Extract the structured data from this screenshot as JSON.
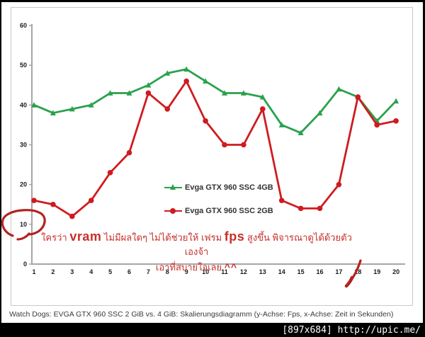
{
  "chart_data": {
    "type": "line",
    "title": "",
    "xlabel": "Zeit in Sekunden",
    "ylabel": "Fps",
    "categories": [
      1,
      2,
      3,
      4,
      5,
      6,
      7,
      8,
      9,
      10,
      11,
      12,
      13,
      14,
      15,
      16,
      17,
      18,
      19,
      20
    ],
    "ylim": [
      0,
      60
    ],
    "y_ticks": [
      0,
      10,
      20,
      30,
      40,
      50,
      60
    ],
    "grid": false,
    "legend_position": "center",
    "series": [
      {
        "name": "Evga GTX 960 SSC 4GB",
        "color": "#2aa14d",
        "marker": "triangle",
        "values": [
          40,
          38,
          39,
          40,
          43,
          43,
          45,
          48,
          49,
          46,
          43,
          43,
          42,
          35,
          33,
          38,
          44,
          42,
          36,
          41
        ]
      },
      {
        "name": "Evga GTX 960 SSC 2GB",
        "color": "#cf1b1f",
        "marker": "circle",
        "values": [
          16,
          15,
          12,
          16,
          23,
          28,
          43,
          39,
          46,
          36,
          30,
          30,
          39,
          16,
          14,
          14,
          20,
          42,
          35,
          36
        ]
      }
    ]
  },
  "annotation": {
    "color": "#c5302b",
    "line1_part1": "ใครว่า ",
    "line1_vram": "vram",
    "line1_part2": " ไม่มีผลใดๆ ไม่ได้ช่วยให้ เฟรม ",
    "line1_fps": "fps",
    "line1_part3": " สูงขึ้น พิจารณาดูได้ด้วยตัวเองจ้า",
    "line2_text": "เอาที่สบายใจเลย ",
    "line2_emote": "^^"
  },
  "drawn_marks": {
    "color": "#b2231f",
    "circle_mark_target": "y-axis label 10",
    "check_mark_target": "x-axis label 18"
  },
  "caption": "Watch Dogs: EVGA GTX 960 SSC 2 GiB vs. 4 GiB: Skalierungsdiagramm (y-Achse: Fps, x-Achse: Zeit in Sekunden)",
  "watermark": "[897x684] http://upic.me/"
}
